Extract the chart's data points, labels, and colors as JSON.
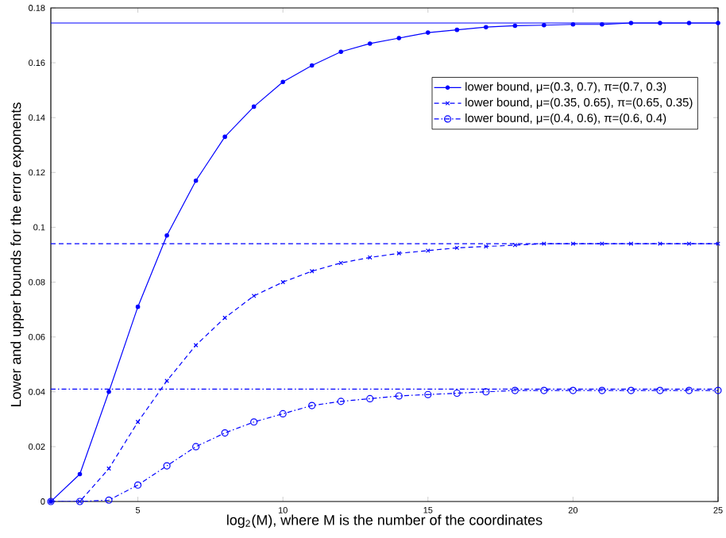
{
  "chart_data": {
    "type": "line",
    "xlabel": "log$_{2}$(M), where M is the number of the coordinates",
    "ylabel": "Lower and upper bounds for the error exponents",
    "x": [
      2,
      3,
      4,
      5,
      6,
      7,
      8,
      9,
      10,
      11,
      12,
      13,
      14,
      15,
      16,
      17,
      18,
      19,
      20,
      21,
      22,
      23,
      24,
      25
    ],
    "series": [
      {
        "name": "lower bound, μ=(0.3, 0.7), π=(0.7, 0.3)",
        "color": "#0000ff",
        "marker": "point",
        "line_style": "solid",
        "values": [
          0,
          0.01,
          0.04,
          0.071,
          0.097,
          0.117,
          0.133,
          0.144,
          0.153,
          0.159,
          0.164,
          0.167,
          0.169,
          0.171,
          0.172,
          0.173,
          0.1735,
          0.1737,
          0.174,
          0.174,
          0.1745,
          0.1745,
          0.1745,
          0.1745
        ]
      },
      {
        "name": "lower bound, μ=(0.35, 0.65), π=(0.65, 0.35)",
        "color": "#0000ff",
        "marker": "cross",
        "line_style": "dashed",
        "values": [
          0,
          0,
          0.012,
          0.029,
          0.044,
          0.057,
          0.067,
          0.075,
          0.08,
          0.084,
          0.087,
          0.089,
          0.0905,
          0.0915,
          0.0925,
          0.093,
          0.0935,
          0.094,
          0.094,
          0.094,
          0.094,
          0.094,
          0.094,
          0.094
        ]
      },
      {
        "name": "lower bound, μ=(0.4, 0.6), π=(0.6, 0.4)",
        "color": "#0000ff",
        "marker": "circle",
        "line_style": "dashdot",
        "values": [
          0,
          0,
          0.0005,
          0.006,
          0.013,
          0.02,
          0.025,
          0.029,
          0.032,
          0.035,
          0.0365,
          0.0375,
          0.0385,
          0.039,
          0.0395,
          0.04,
          0.0405,
          0.0405,
          0.0405,
          0.0405,
          0.0405,
          0.0405,
          0.0405,
          0.0405
        ]
      }
    ],
    "ref_lines": [
      {
        "axis": "y",
        "value": 0.1745,
        "color": "#0000ff",
        "line_style": "solid"
      },
      {
        "axis": "y",
        "value": 0.094,
        "color": "#0000ff",
        "line_style": "dashed"
      },
      {
        "axis": "y",
        "value": 0.041,
        "color": "#0000ff",
        "line_style": "dashdot"
      }
    ],
    "xlim": [
      2,
      25
    ],
    "xticks": [
      5,
      10,
      15,
      20,
      25
    ],
    "ylim": [
      0,
      0.18
    ],
    "yticks": [
      0,
      0.02,
      0.04,
      0.06,
      0.08,
      0.1,
      0.12,
      0.14,
      0.16,
      0.18
    ],
    "grid": false,
    "legend": "top right"
  }
}
